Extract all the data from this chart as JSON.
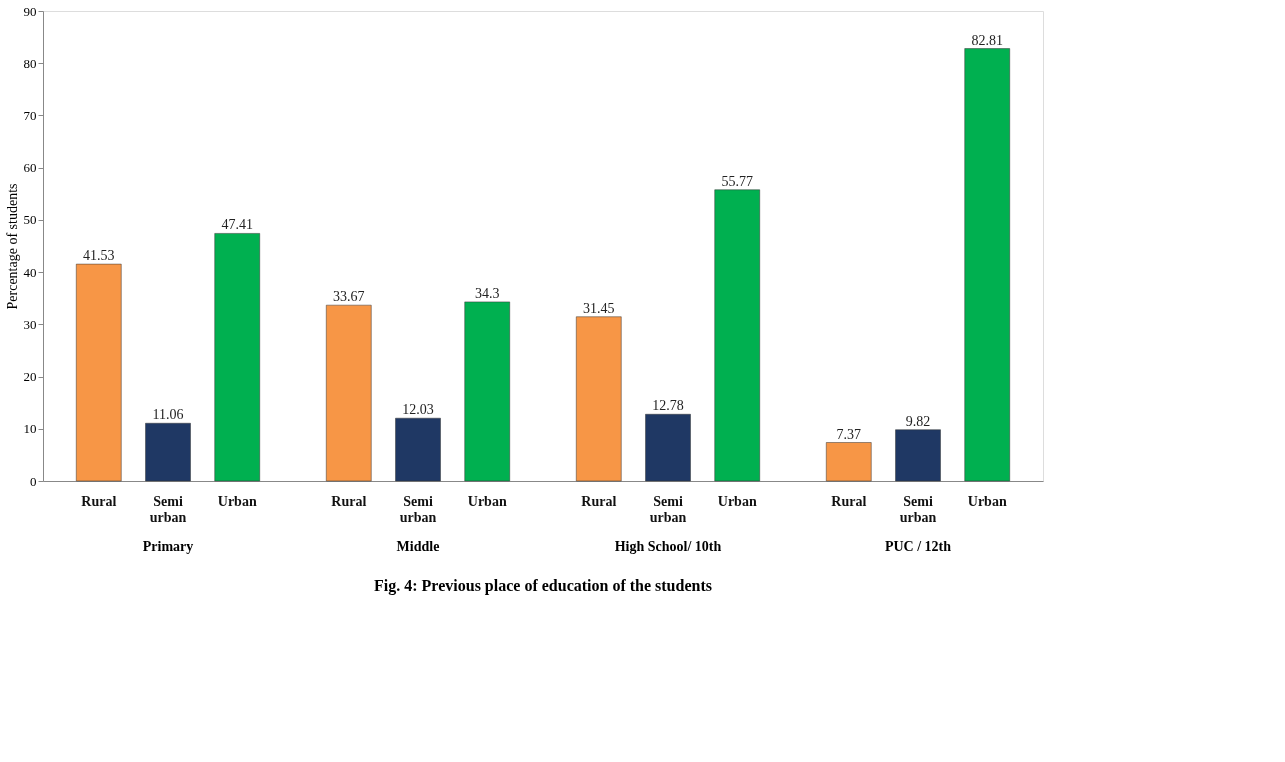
{
  "chart_data": {
    "type": "bar",
    "title": "Fig. 4: Previous place of education of the students",
    "ylabel": "Percentage of students",
    "categories": [
      "Primary",
      "Middle",
      "High School/ 10th",
      "PUC / 12th"
    ],
    "series": [
      {
        "name": "Rural",
        "color": "#f79646",
        "values": [
          41.53,
          33.67,
          31.45,
          7.37
        ]
      },
      {
        "name": "Semi urban",
        "color": "#1f3864",
        "values": [
          11.06,
          12.03,
          12.78,
          9.82
        ]
      },
      {
        "name": "Urban",
        "color": "#00b050",
        "values": [
          47.41,
          34.3,
          55.77,
          82.81
        ]
      }
    ],
    "ylim": [
      0,
      90
    ],
    "yticks": [
      0,
      10,
      20,
      30,
      40,
      50,
      60,
      70,
      80,
      90
    ],
    "grid": false,
    "data_labels": true
  }
}
